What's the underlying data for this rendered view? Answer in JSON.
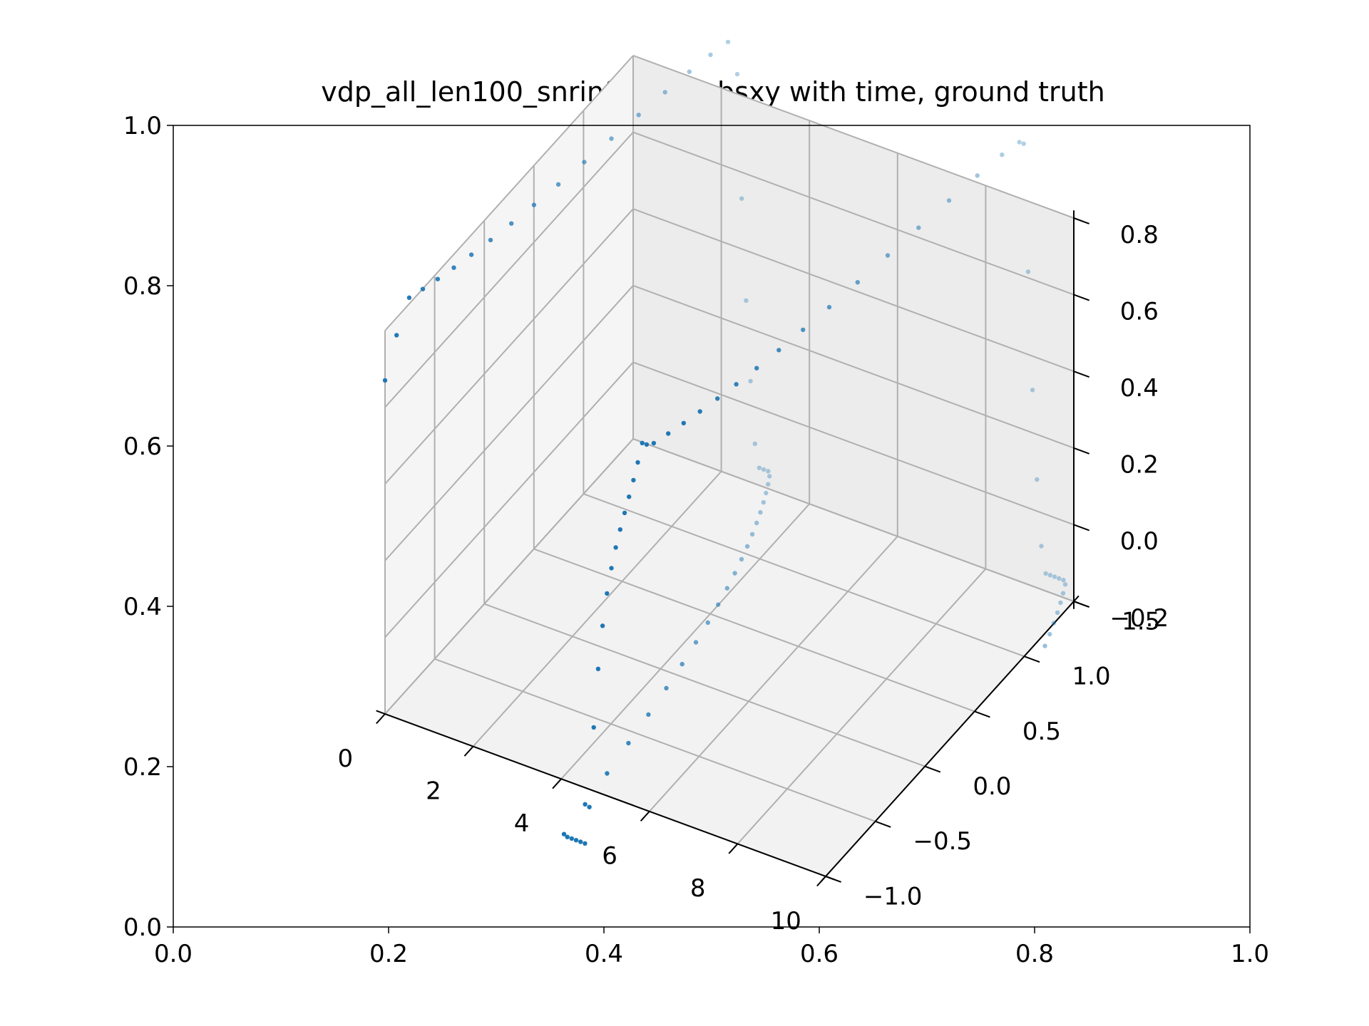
{
  "chart_data": {
    "type": "scatter",
    "title": "vdp_all_len100_snrinf_init3_obsxy with time, ground truth",
    "outer_axes": {
      "x_ticks": [
        "0.0",
        "0.2",
        "0.4",
        "0.6",
        "0.8",
        "1.0"
      ],
      "y_ticks": [
        "0.0",
        "0.2",
        "0.4",
        "0.6",
        "0.8",
        "1.0"
      ],
      "xlim": [
        0,
        1
      ],
      "ylim": [
        0,
        1
      ]
    },
    "axes3d": {
      "time_ticks": [
        "0",
        "2",
        "4",
        "6",
        "8",
        "10"
      ],
      "x_ticks": [
        "−1.0",
        "−0.5",
        "0.0",
        "0.5",
        "1.0",
        "1.5"
      ],
      "y_ticks": [
        "−0.2",
        "0.0",
        "0.2",
        "0.4",
        "0.6",
        "0.8"
      ],
      "time_range": [
        0,
        10
      ],
      "x_range": [
        -1.0,
        1.5
      ],
      "y_range": [
        -0.2,
        0.8
      ],
      "grid": true
    },
    "series": [
      {
        "points": 100,
        "time": [
          0,
          9.9
        ],
        "color": "#1f77b4"
      }
    ]
  },
  "colors": {
    "series": "#1f77b4",
    "pane_floor": "#f2f2f2",
    "pane_left": "#f5f5f5",
    "pane_right": "#ececec",
    "grid": "#b0b0b0"
  }
}
